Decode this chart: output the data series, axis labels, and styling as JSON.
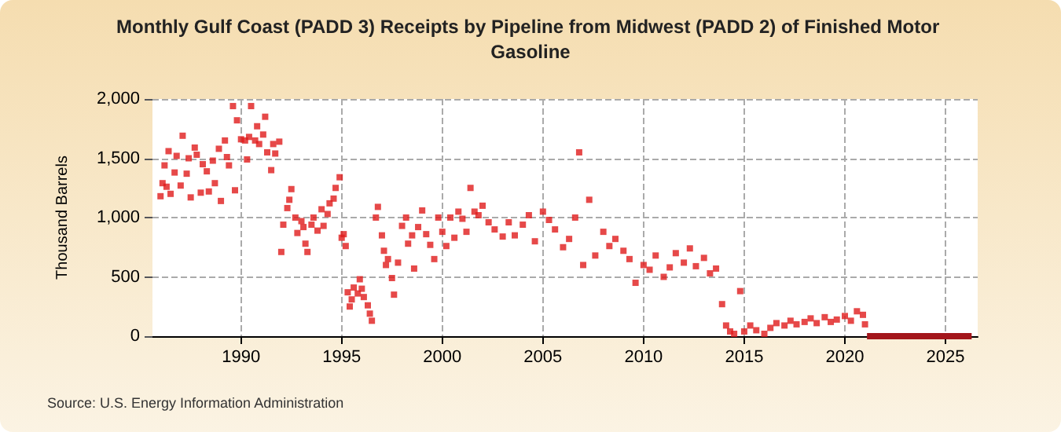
{
  "chart_data": {
    "type": "scatter",
    "title": "Monthly Gulf Coast (PADD 3) Receipts by Pipeline from Midwest (PADD 2) of Finished Motor Gasoline",
    "ylabel": "Thousand Barrels",
    "annotations": [
      "Source: U.S. Energy Information Administration"
    ],
    "marker": "square",
    "grid": true,
    "xlim": [
      1985.6,
      2026.6
    ],
    "xticks": [
      1990,
      1995,
      2000,
      2005,
      2010,
      2015,
      2020,
      2025
    ],
    "ylim": [
      0,
      2000
    ],
    "yticks": [
      0,
      {
        "value": 500,
        "label": "500"
      },
      {
        "value": 1000,
        "label": "1,000"
      },
      {
        "value": 1500,
        "label": "1,500"
      },
      {
        "value": 2000,
        "label": "2,000"
      }
    ],
    "series": [
      {
        "color": "#e01b1b",
        "x": [
          1986.0,
          1986.1,
          1986.2,
          1986.3,
          1986.4,
          1986.5,
          1986.7,
          1986.8,
          1987.0,
          1987.1,
          1987.3,
          1987.4,
          1987.5,
          1987.7,
          1987.8,
          1988.0,
          1988.1,
          1988.3,
          1988.4,
          1988.6,
          1988.7,
          1988.9,
          1989.0,
          1989.2,
          1989.3,
          1989.4,
          1989.6,
          1989.7,
          1989.8,
          1990.0,
          1990.2,
          1990.3,
          1990.4,
          1990.5,
          1990.7,
          1990.8,
          1990.9,
          1991.1,
          1991.2,
          1991.3,
          1991.5,
          1991.6,
          1991.7,
          1991.9,
          1992.0,
          1992.1,
          1992.3,
          1992.4,
          1992.5,
          1992.7,
          1992.8,
          1993.0,
          1993.1,
          1993.2,
          1993.3,
          1993.5,
          1993.6,
          1993.8,
          1994.0,
          1994.1,
          1994.3,
          1994.4,
          1994.6,
          1994.7,
          1994.9,
          1995.0,
          1995.1,
          1995.2,
          1995.3,
          1995.4,
          1995.5,
          1995.6,
          1995.8,
          1995.9,
          1996.0,
          1996.1,
          1996.3,
          1996.4,
          1996.5,
          1996.7,
          1996.8,
          1997.0,
          1997.1,
          1997.2,
          1997.3,
          1997.5,
          1997.6,
          1997.8,
          1998.0,
          1998.2,
          1998.3,
          1998.5,
          1998.6,
          1998.8,
          1999.0,
          1999.2,
          1999.4,
          1999.6,
          1999.8,
          2000.0,
          2000.2,
          2000.4,
          2000.6,
          2000.8,
          2001.0,
          2001.2,
          2001.4,
          2001.6,
          2001.8,
          2002.0,
          2002.3,
          2002.6,
          2003.0,
          2003.3,
          2003.6,
          2004.0,
          2004.3,
          2004.6,
          2005.0,
          2005.3,
          2005.6,
          2006.0,
          2006.3,
          2006.6,
          2006.8,
          2007.0,
          2007.3,
          2007.6,
          2008.0,
          2008.3,
          2008.6,
          2009.0,
          2009.3,
          2009.6,
          2010.0,
          2010.3,
          2010.6,
          2011.0,
          2011.3,
          2011.6,
          2012.0,
          2012.3,
          2012.6,
          2013.0,
          2013.3,
          2013.6,
          2013.9,
          2014.1,
          2014.3,
          2014.5,
          2014.8,
          2015.0,
          2015.3,
          2015.6,
          2016.0,
          2016.3,
          2016.6,
          2017.0,
          2017.3,
          2017.6,
          2018.0,
          2018.3,
          2018.6,
          2019.0,
          2019.3,
          2019.6,
          2020.0,
          2020.3,
          2020.6,
          2020.9,
          2021.0
        ],
        "values": [
          1180,
          1290,
          1440,
          1260,
          1560,
          1200,
          1380,
          1520,
          1270,
          1690,
          1370,
          1500,
          1170,
          1590,
          1530,
          1210,
          1450,
          1390,
          1220,
          1480,
          1290,
          1580,
          1140,
          1650,
          1510,
          1440,
          1940,
          1230,
          1820,
          1660,
          1650,
          1490,
          1680,
          1940,
          1650,
          1770,
          1620,
          1700,
          1850,
          1550,
          1400,
          1620,
          1540,
          1640,
          710,
          940,
          1080,
          1150,
          1240,
          1000,
          870,
          970,
          920,
          780,
          710,
          940,
          1000,
          890,
          1070,
          930,
          1030,
          1120,
          1160,
          1250,
          1340,
          830,
          860,
          760,
          370,
          250,
          310,
          410,
          360,
          480,
          400,
          330,
          260,
          190,
          130,
          1000,
          1090,
          850,
          720,
          600,
          650,
          490,
          350,
          620,
          930,
          1000,
          780,
          850,
          570,
          920,
          1060,
          860,
          770,
          650,
          1000,
          880,
          760,
          1000,
          830,
          1050,
          990,
          880,
          1250,
          1050,
          1020,
          1100,
          960,
          900,
          840,
          960,
          850,
          940,
          1020,
          800,
          1050,
          980,
          900,
          750,
          820,
          1000,
          1550,
          600,
          1150,
          680,
          880,
          760,
          820,
          720,
          650,
          450,
          600,
          560,
          680,
          500,
          580,
          700,
          620,
          740,
          590,
          660,
          530,
          570,
          270,
          90,
          40,
          20,
          380,
          40,
          90,
          50,
          20,
          70,
          110,
          90,
          130,
          100,
          120,
          150,
          110,
          160,
          120,
          140,
          170,
          130,
          210,
          180,
          100
        ]
      },
      {
        "type": "line",
        "marker": "none",
        "color": "#a3161b",
        "x": [
          2021.1,
          2026.3
        ],
        "values": [
          0,
          0
        ]
      }
    ]
  }
}
